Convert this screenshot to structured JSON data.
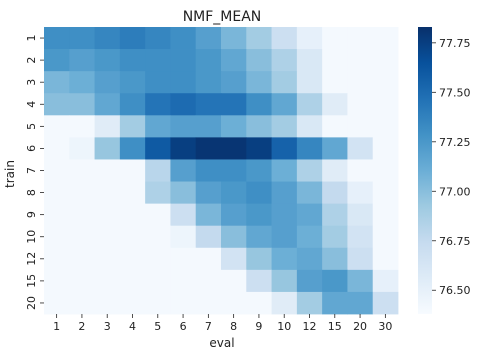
{
  "chart_data": {
    "type": "heatmap",
    "title": "NMF_MEAN",
    "xlabel": "eval",
    "ylabel": "train",
    "x_categories": [
      "1",
      "2",
      "3",
      "4",
      "5",
      "6",
      "7",
      "8",
      "9",
      "10",
      "12",
      "15",
      "20",
      "30"
    ],
    "y_categories": [
      "1",
      "2",
      "3",
      "4",
      "5",
      "6",
      "7",
      "8",
      "9",
      "10",
      "12",
      "15",
      "20"
    ],
    "values": [
      [
        77.3,
        77.3,
        77.35,
        77.4,
        77.35,
        77.3,
        77.2,
        77.05,
        76.9,
        76.7,
        76.5,
        76.4,
        76.4,
        76.4
      ],
      [
        77.25,
        77.2,
        77.25,
        77.3,
        77.3,
        77.3,
        77.25,
        77.15,
        77.0,
        76.85,
        76.6,
        76.4,
        76.4,
        76.4
      ],
      [
        77.05,
        77.1,
        77.2,
        77.25,
        77.3,
        77.3,
        77.25,
        77.2,
        77.05,
        76.9,
        76.6,
        76.4,
        76.4,
        76.4
      ],
      [
        77.0,
        77.0,
        77.15,
        77.3,
        77.45,
        77.5,
        77.45,
        77.45,
        77.3,
        77.15,
        76.85,
        76.55,
        76.4,
        76.4
      ],
      [
        76.4,
        76.4,
        76.55,
        76.9,
        77.15,
        77.2,
        77.2,
        77.1,
        77.0,
        76.9,
        76.6,
        76.4,
        76.4,
        76.4
      ],
      [
        76.4,
        76.45,
        76.95,
        77.3,
        77.6,
        77.75,
        77.8,
        77.8,
        77.75,
        77.55,
        77.35,
        77.15,
        76.65,
        76.4
      ],
      [
        76.4,
        76.4,
        76.4,
        76.4,
        76.8,
        77.2,
        77.3,
        77.3,
        77.25,
        77.1,
        76.85,
        76.55,
        76.4,
        76.4
      ],
      [
        76.4,
        76.4,
        76.4,
        76.4,
        76.85,
        77.0,
        77.2,
        77.25,
        77.3,
        77.2,
        77.05,
        76.75,
        76.5,
        76.4
      ],
      [
        76.4,
        76.4,
        76.4,
        76.4,
        76.4,
        76.7,
        77.05,
        77.2,
        77.25,
        77.2,
        77.15,
        76.85,
        76.6,
        76.4
      ],
      [
        76.4,
        76.4,
        76.4,
        76.4,
        76.4,
        76.45,
        76.75,
        77.0,
        77.15,
        77.2,
        77.1,
        76.9,
        76.65,
        76.4
      ],
      [
        76.4,
        76.4,
        76.4,
        76.4,
        76.4,
        76.4,
        76.4,
        76.65,
        76.95,
        77.1,
        77.15,
        77.0,
        76.7,
        76.4
      ],
      [
        76.4,
        76.4,
        76.4,
        76.4,
        76.4,
        76.4,
        76.4,
        76.4,
        76.7,
        76.95,
        77.2,
        77.25,
        77.05,
        76.5
      ],
      [
        76.4,
        76.4,
        76.4,
        76.4,
        76.4,
        76.4,
        76.4,
        76.4,
        76.4,
        76.55,
        76.9,
        77.15,
        77.15,
        76.7
      ]
    ],
    "colorbar": {
      "colormap": "Blues",
      "vmin": 76.38,
      "vmax": 77.83,
      "ticks": [
        76.5,
        76.75,
        77.0,
        77.25,
        77.5,
        77.75
      ],
      "tick_labels": [
        "76.50",
        "76.75",
        "77.00",
        "77.25",
        "77.50",
        "77.75"
      ]
    },
    "grid": false
  }
}
